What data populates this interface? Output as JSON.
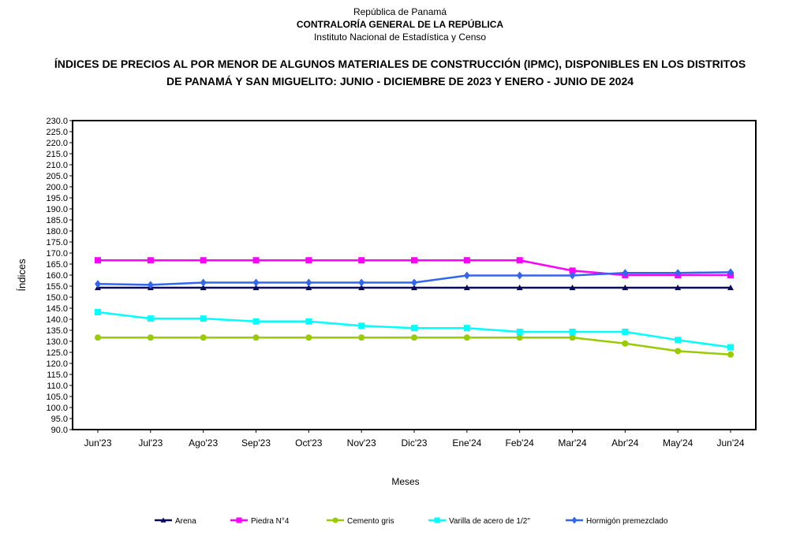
{
  "header": {
    "country": "República de Panamá",
    "organization": "CONTRALORÍA GENERAL DE LA REPÚBLICA",
    "institute": "Instituto Nacional de Estadística y Censo"
  },
  "chart_data": {
    "type": "line",
    "title_line1": "ÍNDICES DE PRECIOS AL POR MENOR DE ALGUNOS MATERIALES DE CONSTRUCCIÓN  (IPMC), DISPONIBLES EN LOS DISTRITOS",
    "title_line2": "DE PANAMÁ Y SAN MIGUELITO: JUNIO - DICIEMBRE DE 2023 Y ENERO - JUNIO DE 2024",
    "xlabel": "Meses",
    "ylabel": "Índices",
    "ylim": [
      90,
      230
    ],
    "ystep": 5,
    "grid": false,
    "legend_position": "bottom",
    "categories": [
      "Jun'23",
      "Jul'23",
      "Ago'23",
      "Sep'23",
      "Oct'23",
      "Nov'23",
      "Dic'23",
      "Ene'24",
      "Feb'24",
      "Mar'24",
      "Abr'24",
      "May'24",
      "Jun'24"
    ],
    "series": [
      {
        "name": "Arena",
        "color": "#0a0a5a",
        "marker": "triangle",
        "values": [
          154.3,
          154.3,
          154.3,
          154.3,
          154.3,
          154.3,
          154.3,
          154.3,
          154.3,
          154.3,
          154.3,
          154.3,
          154.3
        ]
      },
      {
        "name": "Piedra N°4",
        "color": "#ff00ff",
        "marker": "square",
        "values": [
          166.7,
          166.7,
          166.7,
          166.7,
          166.7,
          166.7,
          166.7,
          166.7,
          166.7,
          162.0,
          160.0,
          160.0,
          160.0
        ]
      },
      {
        "name": "Cemento gris",
        "color": "#99cc00",
        "marker": "circle",
        "values": [
          131.7,
          131.7,
          131.7,
          131.7,
          131.7,
          131.7,
          131.7,
          131.7,
          131.7,
          131.7,
          129.0,
          125.6,
          124.0
        ]
      },
      {
        "name": "Varilla de acero de 1/2\"",
        "color": "#00ffff",
        "marker": "square",
        "values": [
          143.2,
          140.3,
          140.3,
          139.0,
          139.0,
          137.0,
          136.0,
          136.0,
          134.3,
          134.3,
          134.3,
          130.6,
          127.3
        ]
      },
      {
        "name": "Hormigón premezclado",
        "color": "#3366ee",
        "marker": "diamond",
        "values": [
          156.0,
          155.6,
          156.6,
          156.6,
          156.6,
          156.6,
          156.6,
          159.8,
          159.8,
          159.8,
          161.0,
          161.0,
          161.3
        ]
      }
    ]
  }
}
